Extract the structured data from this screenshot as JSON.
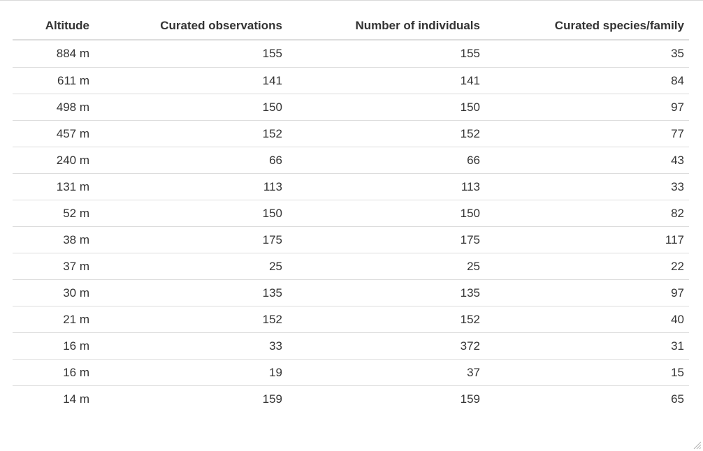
{
  "table": {
    "headers": [
      "Altitude",
      "Curated observations",
      "Number of individuals",
      "Curated species/family"
    ],
    "rows": [
      [
        "884 m",
        "155",
        "155",
        "35"
      ],
      [
        "611 m",
        "141",
        "141",
        "84"
      ],
      [
        "498 m",
        "150",
        "150",
        "97"
      ],
      [
        "457 m",
        "152",
        "152",
        "77"
      ],
      [
        "240 m",
        "66",
        "66",
        "43"
      ],
      [
        "131 m",
        "113",
        "113",
        "33"
      ],
      [
        "52 m",
        "150",
        "150",
        "82"
      ],
      [
        "38 m",
        "175",
        "175",
        "117"
      ],
      [
        "37 m",
        "25",
        "25",
        "22"
      ],
      [
        "30 m",
        "135",
        "135",
        "97"
      ],
      [
        "21 m",
        "152",
        "152",
        "40"
      ],
      [
        "16 m",
        "33",
        "372",
        "31"
      ],
      [
        "16 m",
        "19",
        "37",
        "15"
      ],
      [
        "14 m",
        "159",
        "159",
        "65"
      ]
    ]
  },
  "icons": {
    "resize_grip": "resize-grip-icon"
  }
}
